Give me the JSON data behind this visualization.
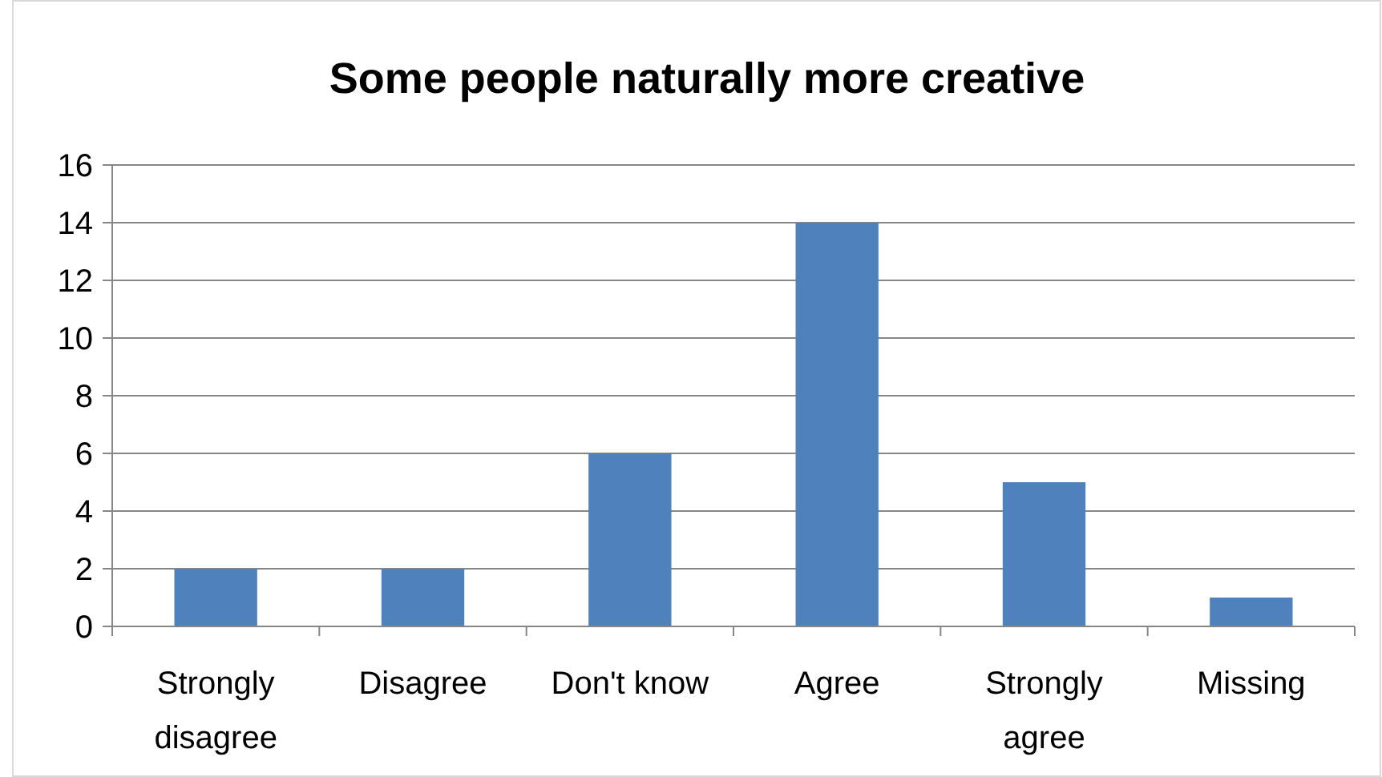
{
  "chart_data": {
    "type": "bar",
    "title": "Some people naturally more creative",
    "categories": [
      "Strongly disagree",
      "Disagree",
      "Don't know",
      "Agree",
      "Strongly agree",
      "Missing"
    ],
    "values": [
      2,
      2,
      6,
      14,
      5,
      1
    ],
    "color": "#4f81bd",
    "ylim": [
      0,
      16
    ],
    "yticks": [
      0,
      2,
      4,
      6,
      8,
      10,
      12,
      14,
      16
    ],
    "grid": "y"
  }
}
